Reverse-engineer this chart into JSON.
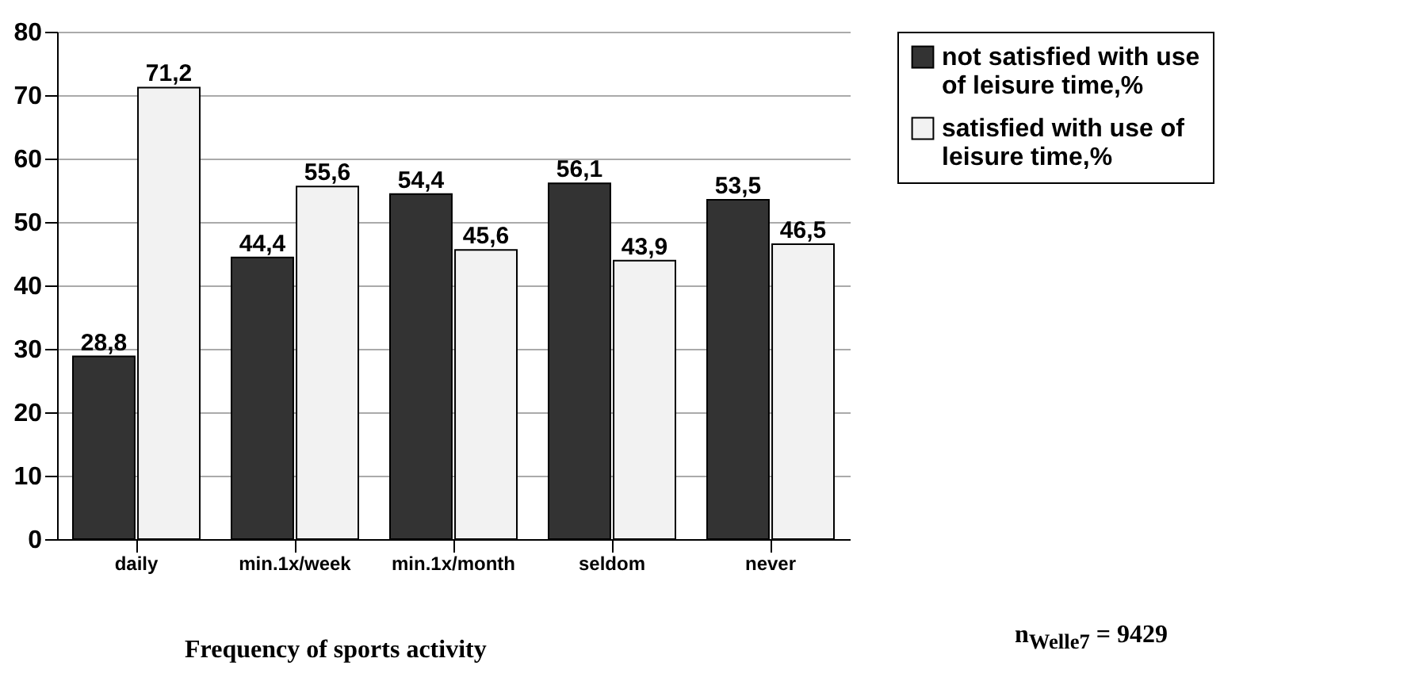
{
  "chart_data": {
    "type": "bar",
    "xlabel": "Frequency of sports activity",
    "categories": [
      "daily",
      "min.1x/week",
      "min.1x/month",
      "seldom",
      "never"
    ],
    "series": [
      {
        "name": "not satisfied with use of leisure time,%",
        "color": "#333333",
        "values": [
          28.8,
          44.4,
          54.4,
          56.1,
          53.5
        ],
        "value_labels": [
          "28,8",
          "44,4",
          "54,4",
          "56,1",
          "53,5"
        ]
      },
      {
        "name": "satisfied with use of leisure time,%",
        "color": "#f2f2f2",
        "values": [
          71.2,
          55.6,
          45.6,
          43.9,
          46.5
        ],
        "value_labels": [
          "71,2",
          "55,6",
          "45,6",
          "43,9",
          "46,5"
        ]
      }
    ],
    "ylim": [
      0,
      80
    ],
    "yticks": [
      0,
      10,
      20,
      30,
      40,
      50,
      60,
      70,
      80
    ],
    "grid": "y",
    "legend": "right",
    "annotations": [
      "n$_{Welle7}$ = 9429"
    ]
  }
}
